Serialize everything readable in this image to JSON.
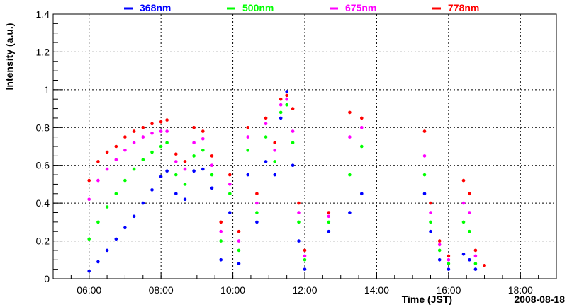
{
  "chart_data": {
    "type": "scatter",
    "title": "",
    "xlabel": "Time (JST)",
    "ylabel": "Intensity (a.u.)",
    "date_label": "2008-08-18",
    "xlim": [
      "05:00",
      "19:00"
    ],
    "ylim": [
      0,
      1.4
    ],
    "x_ticks": [
      "06:00",
      "08:00",
      "10:00",
      "12:00",
      "14:00",
      "16:00",
      "18:00"
    ],
    "y_ticks": [
      "0",
      "0.2",
      "0.4",
      "0.6",
      "0.8",
      "1",
      "1.2",
      "1.4"
    ],
    "grid": true,
    "legend_position": "top",
    "series": [
      {
        "name": "368nm",
        "color": "#0000ff",
        "points": [
          [
            "06:00",
            0.04
          ],
          [
            "06:15",
            0.09
          ],
          [
            "06:30",
            0.15
          ],
          [
            "06:45",
            0.21
          ],
          [
            "07:00",
            0.27
          ],
          [
            "07:15",
            0.33
          ],
          [
            "07:30",
            0.4
          ],
          [
            "07:45",
            0.47
          ],
          [
            "08:00",
            0.54
          ],
          [
            "08:10",
            0.57
          ],
          [
            "08:25",
            0.45
          ],
          [
            "08:40",
            0.42
          ],
          [
            "08:55",
            0.57
          ],
          [
            "09:10",
            0.58
          ],
          [
            "09:25",
            0.48
          ],
          [
            "09:40",
            0.1
          ],
          [
            "09:55",
            0.35
          ],
          [
            "10:10",
            0.08
          ],
          [
            "10:25",
            0.55
          ],
          [
            "10:40",
            0.3
          ],
          [
            "10:55",
            0.62
          ],
          [
            "11:10",
            0.55
          ],
          [
            "11:20",
            0.85
          ],
          [
            "11:30",
            0.99
          ],
          [
            "11:40",
            0.6
          ],
          [
            "11:50",
            0.2
          ],
          [
            "12:00",
            0.05
          ],
          [
            "12:40",
            0.25
          ],
          [
            "13:15",
            0.35
          ],
          [
            "13:35",
            0.45
          ],
          [
            "15:20",
            0.45
          ],
          [
            "15:30",
            0.25
          ],
          [
            "15:45",
            0.1
          ],
          [
            "16:00",
            0.05
          ],
          [
            "16:25",
            0.13
          ],
          [
            "16:35",
            0.1
          ],
          [
            "16:45",
            0.05
          ]
        ]
      },
      {
        "name": "500nm",
        "color": "#00ff00",
        "points": [
          [
            "06:00",
            0.21
          ],
          [
            "06:15",
            0.3
          ],
          [
            "06:30",
            0.38
          ],
          [
            "06:45",
            0.45
          ],
          [
            "07:00",
            0.52
          ],
          [
            "07:15",
            0.58
          ],
          [
            "07:30",
            0.63
          ],
          [
            "07:45",
            0.67
          ],
          [
            "08:00",
            0.7
          ],
          [
            "08:10",
            0.72
          ],
          [
            "08:25",
            0.55
          ],
          [
            "08:40",
            0.5
          ],
          [
            "08:55",
            0.65
          ],
          [
            "09:10",
            0.68
          ],
          [
            "09:25",
            0.55
          ],
          [
            "09:40",
            0.2
          ],
          [
            "09:55",
            0.45
          ],
          [
            "10:10",
            0.15
          ],
          [
            "10:25",
            0.68
          ],
          [
            "10:40",
            0.35
          ],
          [
            "10:55",
            0.75
          ],
          [
            "11:10",
            0.62
          ],
          [
            "11:20",
            0.88
          ],
          [
            "11:30",
            0.92
          ],
          [
            "11:40",
            0.72
          ],
          [
            "11:50",
            0.3
          ],
          [
            "12:00",
            0.1
          ],
          [
            "12:40",
            0.3
          ],
          [
            "13:15",
            0.55
          ],
          [
            "13:35",
            0.7
          ],
          [
            "15:20",
            0.55
          ],
          [
            "15:30",
            0.3
          ],
          [
            "15:45",
            0.15
          ],
          [
            "16:00",
            0.08
          ],
          [
            "16:25",
            0.3
          ],
          [
            "16:35",
            0.25
          ],
          [
            "16:45",
            0.08
          ]
        ]
      },
      {
        "name": "675nm",
        "color": "#ff00ff",
        "points": [
          [
            "06:00",
            0.42
          ],
          [
            "06:15",
            0.52
          ],
          [
            "06:30",
            0.58
          ],
          [
            "06:45",
            0.63
          ],
          [
            "07:00",
            0.68
          ],
          [
            "07:15",
            0.72
          ],
          [
            "07:30",
            0.75
          ],
          [
            "07:45",
            0.77
          ],
          [
            "08:00",
            0.78
          ],
          [
            "08:10",
            0.78
          ],
          [
            "08:25",
            0.62
          ],
          [
            "08:40",
            0.58
          ],
          [
            "08:55",
            0.72
          ],
          [
            "09:10",
            0.74
          ],
          [
            "09:25",
            0.6
          ],
          [
            "09:40",
            0.25
          ],
          [
            "09:55",
            0.5
          ],
          [
            "10:10",
            0.2
          ],
          [
            "10:25",
            0.75
          ],
          [
            "10:40",
            0.4
          ],
          [
            "10:55",
            0.82
          ],
          [
            "11:10",
            0.68
          ],
          [
            "11:20",
            0.92
          ],
          [
            "11:30",
            0.95
          ],
          [
            "11:40",
            0.78
          ],
          [
            "11:50",
            0.35
          ],
          [
            "12:00",
            0.12
          ],
          [
            "12:40",
            0.33
          ],
          [
            "13:15",
            0.75
          ],
          [
            "13:35",
            0.8
          ],
          [
            "15:20",
            0.65
          ],
          [
            "15:30",
            0.35
          ],
          [
            "15:45",
            0.18
          ],
          [
            "16:00",
            0.1
          ],
          [
            "16:25",
            0.4
          ],
          [
            "16:35",
            0.35
          ],
          [
            "16:45",
            0.12
          ]
        ]
      },
      {
        "name": "778nm",
        "color": "#ff0000",
        "points": [
          [
            "06:00",
            0.52
          ],
          [
            "06:15",
            0.62
          ],
          [
            "06:30",
            0.67
          ],
          [
            "06:45",
            0.7
          ],
          [
            "07:00",
            0.75
          ],
          [
            "07:15",
            0.78
          ],
          [
            "07:30",
            0.8
          ],
          [
            "07:45",
            0.82
          ],
          [
            "08:00",
            0.83
          ],
          [
            "08:10",
            0.84
          ],
          [
            "08:25",
            0.66
          ],
          [
            "08:40",
            0.62
          ],
          [
            "08:55",
            0.8
          ],
          [
            "09:10",
            0.78
          ],
          [
            "09:25",
            0.65
          ],
          [
            "09:40",
            0.3
          ],
          [
            "09:55",
            0.55
          ],
          [
            "10:10",
            0.25
          ],
          [
            "10:25",
            0.8
          ],
          [
            "10:40",
            0.45
          ],
          [
            "10:55",
            0.85
          ],
          [
            "11:10",
            0.72
          ],
          [
            "11:20",
            0.95
          ],
          [
            "11:30",
            0.97
          ],
          [
            "11:40",
            0.9
          ],
          [
            "11:50",
            0.4
          ],
          [
            "12:00",
            0.15
          ],
          [
            "12:40",
            0.35
          ],
          [
            "13:15",
            0.88
          ],
          [
            "13:35",
            0.85
          ],
          [
            "15:20",
            0.78
          ],
          [
            "15:30",
            0.4
          ],
          [
            "15:45",
            0.2
          ],
          [
            "16:00",
            0.12
          ],
          [
            "16:25",
            0.52
          ],
          [
            "16:35",
            0.45
          ],
          [
            "16:45",
            0.15
          ],
          [
            "17:00",
            0.07
          ]
        ]
      }
    ]
  }
}
